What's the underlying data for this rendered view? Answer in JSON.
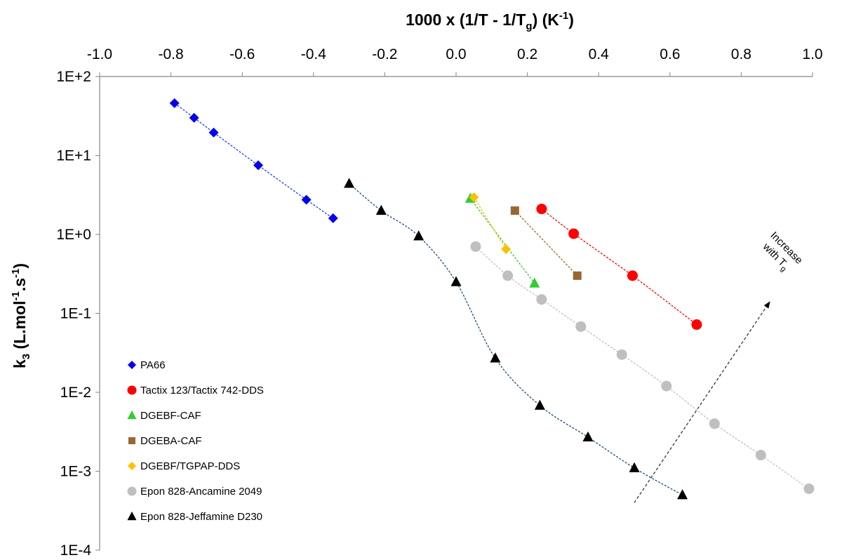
{
  "chart_data": {
    "type": "scatter",
    "title": "",
    "xlabel": {
      "main": "1000 x (1/T - 1/T",
      "sub": "g",
      "tail": ") (K",
      "sup": "-1",
      "end": ")"
    },
    "ylabel": {
      "main": "k",
      "sub": "3",
      "mid": " (L.mol",
      "sup1": "-1",
      "mid2": ".s",
      "sup2": "-1",
      "end": ")"
    },
    "x_axis_position": "top",
    "xlim": [
      -1.0,
      1.0
    ],
    "ylim": [
      0.0001,
      100
    ],
    "y_scale": "log",
    "grid": false,
    "legend_position": "bottom-left",
    "x_ticks": [
      {
        "v": -1.0,
        "label": "-1.0"
      },
      {
        "v": -0.8,
        "label": "-0.8"
      },
      {
        "v": -0.6,
        "label": "-0.6"
      },
      {
        "v": -0.4,
        "label": "-0.4"
      },
      {
        "v": -0.2,
        "label": "-0.2"
      },
      {
        "v": 0.0,
        "label": "0.0"
      },
      {
        "v": 0.2,
        "label": "0.2"
      },
      {
        "v": 0.4,
        "label": "0.4"
      },
      {
        "v": 0.6,
        "label": "0.6"
      },
      {
        "v": 0.8,
        "label": "0.8"
      },
      {
        "v": 1.0,
        "label": "1.0"
      }
    ],
    "y_ticks": [
      {
        "v": 100,
        "label": "1E+2"
      },
      {
        "v": 10,
        "label": "1E+1"
      },
      {
        "v": 1,
        "label": "1E+0"
      },
      {
        "v": 0.1,
        "label": "1E-1"
      },
      {
        "v": 0.01,
        "label": "1E-2"
      },
      {
        "v": 0.001,
        "label": "1E-3"
      },
      {
        "v": 0.0001,
        "label": "1E-4"
      }
    ],
    "series": [
      {
        "name": "PA66",
        "marker": "diamond",
        "color": "#0000ee",
        "line_color": "#1f3fff",
        "points": [
          [
            -0.79,
            46
          ],
          [
            -0.735,
            30
          ],
          [
            -0.68,
            19.5
          ],
          [
            -0.555,
            7.5
          ],
          [
            -0.42,
            2.75
          ],
          [
            -0.345,
            1.6
          ]
        ]
      },
      {
        "name": "Tactix 123/Tactix 742-DDS",
        "marker": "circle",
        "color": "#ff0000",
        "line_color": "#ff0000",
        "points": [
          [
            0.24,
            2.1
          ],
          [
            0.33,
            1.02
          ],
          [
            0.495,
            0.3
          ],
          [
            0.675,
            0.072
          ]
        ]
      },
      {
        "name": "DGEBF-CAF",
        "marker": "triangle",
        "color": "#33cc33",
        "line_color": "#33cc33",
        "points": [
          [
            0.04,
            2.85
          ],
          [
            0.22,
            0.24
          ]
        ]
      },
      {
        "name": "DGEBA-CAF",
        "marker": "square",
        "color": "#996633",
        "line_color": "#996633",
        "points": [
          [
            0.165,
            2.0
          ],
          [
            0.34,
            0.3
          ]
        ]
      },
      {
        "name": "DGEBF/TGPAP-DDS",
        "marker": "diamond",
        "color": "#ffc000",
        "line_color": "#ffc000",
        "points": [
          [
            0.05,
            2.95
          ],
          [
            0.14,
            0.65
          ]
        ]
      },
      {
        "name": "Epon 828-Ancamine 2049",
        "marker": "circle",
        "color": "#bfbfbf",
        "line_color": "#bfbfbf",
        "points": [
          [
            0.055,
            0.7
          ],
          [
            0.145,
            0.3
          ],
          [
            0.24,
            0.15
          ],
          [
            0.35,
            0.068
          ],
          [
            0.465,
            0.03
          ],
          [
            0.59,
            0.012
          ],
          [
            0.725,
            0.004
          ],
          [
            0.855,
            0.0016
          ],
          [
            0.99,
            0.0006
          ]
        ]
      },
      {
        "name": "Epon 828-Jeffamine D230",
        "marker": "triangle",
        "color": "#000000",
        "line_color": "#1f4e79",
        "points": [
          [
            -0.3,
            4.4
          ],
          [
            -0.21,
            2.0
          ],
          [
            -0.105,
            0.95
          ],
          [
            0.0,
            0.25
          ],
          [
            0.11,
            0.027
          ],
          [
            0.235,
            0.0068
          ],
          [
            0.37,
            0.0027
          ],
          [
            0.5,
            0.0011
          ],
          [
            0.635,
            0.0005
          ]
        ]
      }
    ],
    "annotation": {
      "text_line1": "Increase",
      "text_line2": "with T",
      "text_sub": "g",
      "arrow_from": [
        0.5,
        0.0004
      ],
      "arrow_to": [
        0.88,
        0.14
      ]
    }
  }
}
